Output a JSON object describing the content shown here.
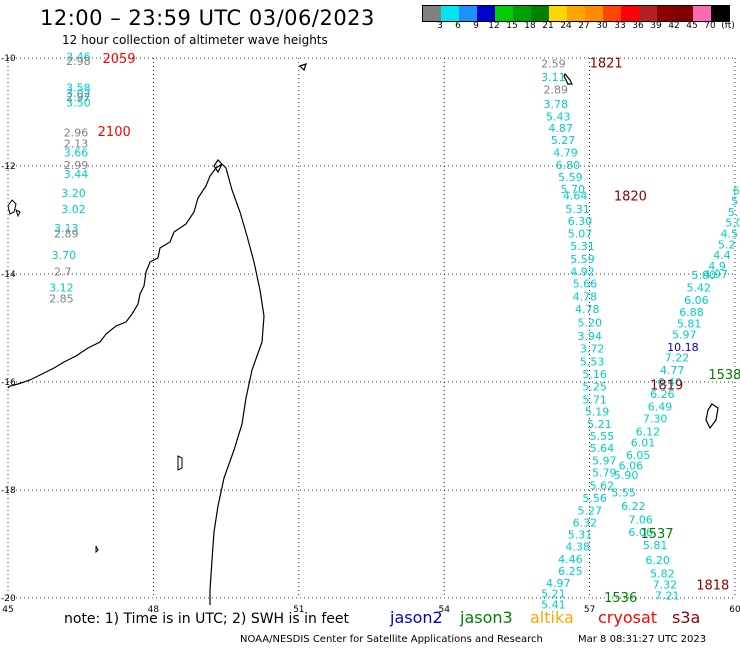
{
  "header": {
    "title": "12:00 – 23:59 UTC 03/06/2023",
    "subtitle": "12 hour collection of altimeter wave heights"
  },
  "color_scale": {
    "unit_label": "(ft)",
    "colors": [
      "#808080",
      "#00e5ee",
      "#1e90ff",
      "#0000cd",
      "#00cd00",
      "#00a000",
      "#008000",
      "#ffd700",
      "#ffa500",
      "#ff8c00",
      "#ff4500",
      "#ff0000",
      "#b22222",
      "#8b0000",
      "#800000",
      "#ff69b4",
      "#000000"
    ],
    "labels": [
      "3",
      "6",
      "9",
      "12",
      "15",
      "18",
      "21",
      "24",
      "27",
      "30",
      "33",
      "36",
      "39",
      "42",
      "45",
      "70"
    ]
  },
  "axes": {
    "lat_labels": [
      "-10",
      "-12",
      "-14",
      "-16",
      "-18",
      "-20"
    ],
    "lat_values": [
      -10,
      -12,
      -14,
      -16,
      -18,
      -20
    ],
    "lon_labels": [
      "45",
      "48",
      "51",
      "54",
      "57",
      "60"
    ],
    "lon_values": [
      45,
      48,
      51,
      54,
      57,
      60
    ],
    "lon_range": [
      45,
      60
    ],
    "lat_range": [
      -10,
      -20
    ],
    "grid": "dotted"
  },
  "passes": [
    {
      "time": "2059",
      "color": "#ff0000",
      "lon": 46.95,
      "lat": -10.0
    },
    {
      "time": "2100",
      "color": "#ff0000",
      "lon": 46.85,
      "lat": -11.35
    },
    {
      "time": "1821",
      "color": "#8b0000",
      "lon": 57.0,
      "lat": -10.08
    },
    {
      "time": "1820",
      "color": "#8b0000",
      "lon": 57.5,
      "lat": -12.55
    },
    {
      "time": "1819",
      "color": "#8b0000",
      "lon": 58.25,
      "lat": -16.05
    },
    {
      "time": "1818",
      "color": "#8b0000",
      "lon": 59.2,
      "lat": -19.75
    },
    {
      "time": "1538",
      "color": "#008000",
      "lon": 59.45,
      "lat": -15.85
    },
    {
      "time": "1537",
      "color": "#008000",
      "lon": 58.05,
      "lat": -18.8
    },
    {
      "time": "1536",
      "color": "#008000",
      "lon": 57.3,
      "lat": -19.98
    }
  ],
  "wave_labels": [
    {
      "v": "3.46",
      "c": "#00cdcd",
      "lon": 46.2,
      "lat": -9.97
    },
    {
      "v": "2.98",
      "c": "#808080",
      "lon": 46.2,
      "lat": -10.06
    },
    {
      "v": "3.58",
      "c": "#00cdcd",
      "lon": 46.2,
      "lat": -10.55
    },
    {
      "v": "3.02",
      "c": "#00cdcd",
      "lon": 46.2,
      "lat": -10.65
    },
    {
      "v": "2.97",
      "c": "#808080",
      "lon": 46.2,
      "lat": -10.72
    },
    {
      "v": "3.50",
      "c": "#00cdcd",
      "lon": 46.2,
      "lat": -10.82
    },
    {
      "v": "2.96",
      "c": "#808080",
      "lon": 46.15,
      "lat": -11.38
    },
    {
      "v": "2.13",
      "c": "#808080",
      "lon": 46.15,
      "lat": -11.58
    },
    {
      "v": "3.66",
      "c": "#00cdcd",
      "lon": 46.15,
      "lat": -11.75
    },
    {
      "v": "2.99",
      "c": "#808080",
      "lon": 46.15,
      "lat": -11.98
    },
    {
      "v": "3.44",
      "c": "#00cdcd",
      "lon": 46.15,
      "lat": -12.15
    },
    {
      "v": "3.20",
      "c": "#00cdcd",
      "lon": 46.1,
      "lat": -12.5
    },
    {
      "v": "3.02",
      "c": "#00cdcd",
      "lon": 46.1,
      "lat": -12.8
    },
    {
      "v": "3.13",
      "c": "#00cdcd",
      "lon": 45.95,
      "lat": -13.15
    },
    {
      "v": "2.89",
      "c": "#808080",
      "lon": 45.95,
      "lat": -13.25
    },
    {
      "v": "3.70",
      "c": "#00cdcd",
      "lon": 45.9,
      "lat": -13.65
    },
    {
      "v": "2.7",
      "c": "#808080",
      "lon": 45.95,
      "lat": -13.95
    },
    {
      "v": "3.12",
      "c": "#00cdcd",
      "lon": 45.85,
      "lat": -14.25
    },
    {
      "v": "2.85",
      "c": "#808080",
      "lon": 45.85,
      "lat": -14.45
    },
    {
      "v": "2.59",
      "c": "#808080",
      "lon": 56.0,
      "lat": -10.1
    },
    {
      "v": "3.11",
      "c": "#00cdcd",
      "lon": 56.0,
      "lat": -10.35
    },
    {
      "v": "2.89",
      "c": "#808080",
      "lon": 56.05,
      "lat": -10.58
    },
    {
      "v": "3.78",
      "c": "#00cdcd",
      "lon": 56.05,
      "lat": -10.85
    },
    {
      "v": "5.43",
      "c": "#00cdcd",
      "lon": 56.1,
      "lat": -11.08
    },
    {
      "v": "4.87",
      "c": "#00cdcd",
      "lon": 56.15,
      "lat": -11.3
    },
    {
      "v": "5.27",
      "c": "#00cdcd",
      "lon": 56.2,
      "lat": -11.52
    },
    {
      "v": "4.79",
      "c": "#00cdcd",
      "lon": 56.25,
      "lat": -11.75
    },
    {
      "v": "6.80",
      "c": "#00cdcd",
      "lon": 56.3,
      "lat": -11.98
    },
    {
      "v": "5.59",
      "c": "#00cdcd",
      "lon": 56.35,
      "lat": -12.2
    },
    {
      "v": "5.70",
      "c": "#00cdcd",
      "lon": 56.4,
      "lat": -12.43
    },
    {
      "v": "4.64",
      "c": "#00cdcd",
      "lon": 56.45,
      "lat": -12.55
    },
    {
      "v": "5.31",
      "c": "#00cdcd",
      "lon": 56.5,
      "lat": -12.8
    },
    {
      "v": "6.30",
      "c": "#00cdcd",
      "lon": 56.55,
      "lat": -13.02
    },
    {
      "v": "5.07",
      "c": "#00cdcd",
      "lon": 56.55,
      "lat": -13.25
    },
    {
      "v": "5.31",
      "c": "#00cdcd",
      "lon": 56.6,
      "lat": -13.48
    },
    {
      "v": "5.59",
      "c": "#00cdcd",
      "lon": 56.6,
      "lat": -13.72
    },
    {
      "v": "4.92",
      "c": "#00cdcd",
      "lon": 56.6,
      "lat": -13.95
    },
    {
      "v": "5.66",
      "c": "#00cdcd",
      "lon": 56.65,
      "lat": -14.18
    },
    {
      "v": "4.78",
      "c": "#00cdcd",
      "lon": 56.65,
      "lat": -14.42
    },
    {
      "v": "4.78",
      "c": "#00cdcd",
      "lon": 56.7,
      "lat": -14.65
    },
    {
      "v": "5.20",
      "c": "#00cdcd",
      "lon": 56.75,
      "lat": -14.9
    },
    {
      "v": "3.94",
      "c": "#00cdcd",
      "lon": 56.75,
      "lat": -15.15
    },
    {
      "v": "3.72",
      "c": "#00cdcd",
      "lon": 56.8,
      "lat": -15.38
    },
    {
      "v": "5.53",
      "c": "#00cdcd",
      "lon": 56.8,
      "lat": -15.62
    },
    {
      "v": "5.16",
      "c": "#00cdcd",
      "lon": 56.85,
      "lat": -15.85
    },
    {
      "v": "5.25",
      "c": "#00cdcd",
      "lon": 56.85,
      "lat": -16.08
    },
    {
      "v": "5.71",
      "c": "#00cdcd",
      "lon": 56.85,
      "lat": -16.32
    },
    {
      "v": "5.19",
      "c": "#00cdcd",
      "lon": 56.9,
      "lat": -16.55
    },
    {
      "v": "5.21",
      "c": "#00cdcd",
      "lon": 56.95,
      "lat": -16.78
    },
    {
      "v": "5.55",
      "c": "#00cdcd",
      "lon": 57.0,
      "lat": -17.0
    },
    {
      "v": "5.64",
      "c": "#00cdcd",
      "lon": 57.0,
      "lat": -17.22
    },
    {
      "v": "5.97",
      "c": "#00cdcd",
      "lon": 57.05,
      "lat": -17.45
    },
    {
      "v": "5.79",
      "c": "#00cdcd",
      "lon": 57.05,
      "lat": -17.68
    },
    {
      "v": "5.62",
      "c": "#00cdcd",
      "lon": 57.0,
      "lat": -17.92
    },
    {
      "v": "5.56",
      "c": "#00cdcd",
      "lon": 56.85,
      "lat": -18.15
    },
    {
      "v": "5.27",
      "c": "#00cdcd",
      "lon": 56.75,
      "lat": -18.38
    },
    {
      "v": "6.32",
      "c": "#00cdcd",
      "lon": 56.65,
      "lat": -18.6
    },
    {
      "v": "5.31",
      "c": "#00cdcd",
      "lon": 56.55,
      "lat": -18.82
    },
    {
      "v": "4.38",
      "c": "#00cdcd",
      "lon": 56.5,
      "lat": -19.05
    },
    {
      "v": "4.46",
      "c": "#00cdcd",
      "lon": 56.35,
      "lat": -19.28
    },
    {
      "v": "6.25",
      "c": "#00cdcd",
      "lon": 56.35,
      "lat": -19.5
    },
    {
      "v": "4.97",
      "c": "#00cdcd",
      "lon": 56.1,
      "lat": -19.72
    },
    {
      "v": "5.21",
      "c": "#00cdcd",
      "lon": 56.0,
      "lat": -19.92
    },
    {
      "v": "5.41",
      "c": "#00cdcd",
      "lon": 56.0,
      "lat": -20.12
    },
    {
      "v": "4.97",
      "c": "#00cdcd",
      "lon": 59.35,
      "lat": -14.0
    },
    {
      "v": "5.00",
      "c": "#00cdcd",
      "lon": 59.1,
      "lat": -14.02
    },
    {
      "v": "5.42",
      "c": "#00cdcd",
      "lon": 59.0,
      "lat": -14.25
    },
    {
      "v": "6.06",
      "c": "#00cdcd",
      "lon": 58.95,
      "lat": -14.48
    },
    {
      "v": "6.88",
      "c": "#00cdcd",
      "lon": 58.85,
      "lat": -14.7
    },
    {
      "v": "5.81",
      "c": "#00cdcd",
      "lon": 58.8,
      "lat": -14.92
    },
    {
      "v": "5.97",
      "c": "#00cdcd",
      "lon": 58.7,
      "lat": -15.12
    },
    {
      "v": "10.18",
      "c": "#0000cd",
      "lon": 58.6,
      "lat": -15.35
    },
    {
      "v": "7.22",
      "c": "#00cdcd",
      "lon": 58.55,
      "lat": -15.55
    },
    {
      "v": "4.77",
      "c": "#00cdcd",
      "lon": 58.45,
      "lat": -15.78
    },
    {
      "v": "6.40",
      "c": "#00cdcd",
      "lon": 58.4,
      "lat": -16.0
    },
    {
      "v": "6.26",
      "c": "#00cdcd",
      "lon": 58.25,
      "lat": -16.22
    },
    {
      "v": "6.49",
      "c": "#00cdcd",
      "lon": 58.2,
      "lat": -16.45
    },
    {
      "v": "7.30",
      "c": "#00cdcd",
      "lon": 58.1,
      "lat": -16.68
    },
    {
      "v": "6.12",
      "c": "#00cdcd",
      "lon": 57.95,
      "lat": -16.92
    },
    {
      "v": "6.01",
      "c": "#00cdcd",
      "lon": 57.85,
      "lat": -17.12
    },
    {
      "v": "6.05",
      "c": "#00cdcd",
      "lon": 57.75,
      "lat": -17.35
    },
    {
      "v": "6.06",
      "c": "#00cdcd",
      "lon": 57.6,
      "lat": -17.55
    },
    {
      "v": "5.90",
      "c": "#00cdcd",
      "lon": 57.5,
      "lat": -17.72
    },
    {
      "v": "5.55",
      "c": "#00cdcd",
      "lon": 57.45,
      "lat": -18.05
    },
    {
      "v": "6.22",
      "c": "#00cdcd",
      "lon": 57.65,
      "lat": -18.3
    },
    {
      "v": "7.06",
      "c": "#00cdcd",
      "lon": 57.8,
      "lat": -18.55
    },
    {
      "v": "6.06",
      "c": "#00cdcd",
      "lon": 57.8,
      "lat": -18.78
    },
    {
      "v": "5.81",
      "c": "#00cdcd",
      "lon": 58.1,
      "lat": -19.02
    },
    {
      "v": "6.20",
      "c": "#00cdcd",
      "lon": 58.15,
      "lat": -19.3
    },
    {
      "v": "5.82",
      "c": "#00cdcd",
      "lon": 58.25,
      "lat": -19.55
    },
    {
      "v": "7.32",
      "c": "#00cdcd",
      "lon": 58.3,
      "lat": -19.75
    },
    {
      "v": "7.21",
      "c": "#00cdcd",
      "lon": 58.35,
      "lat": -19.95
    },
    {
      "v": "6",
      "c": "#00cdcd",
      "lon": 59.95,
      "lat": -12.45
    },
    {
      "v": "5",
      "c": "#00cdcd",
      "lon": 59.92,
      "lat": -12.65
    },
    {
      "v": "5.",
      "c": "#00cdcd",
      "lon": 59.85,
      "lat": -12.85
    },
    {
      "v": "5.0",
      "c": "#00cdcd",
      "lon": 59.8,
      "lat": -13.05
    },
    {
      "v": "4.5",
      "c": "#00cdcd",
      "lon": 59.7,
      "lat": -13.25
    },
    {
      "v": "5.2",
      "c": "#00cdcd",
      "lon": 59.65,
      "lat": -13.45
    },
    {
      "v": "4.4",
      "c": "#00cdcd",
      "lon": 59.55,
      "lat": -13.65
    },
    {
      "v": "4.9",
      "c": "#00cdcd",
      "lon": 59.45,
      "lat": -13.85
    }
  ],
  "note": "note:  1) Time is in UTC; 2) SWH is in feet",
  "legend": [
    {
      "label": "jason2",
      "color": "#0000cd"
    },
    {
      "label": "jason3",
      "color": "#008000"
    },
    {
      "label": "altika",
      "color": "#ffa500"
    },
    {
      "label": "cryosat",
      "color": "#ff0000"
    },
    {
      "label": "s3a",
      "color": "#8b0000"
    }
  ],
  "footer": {
    "org": "NOAA/NESDIS Center for Satellite Applications and Research",
    "timestamp": "Mar  8 08:31:27 UTC 2023"
  }
}
